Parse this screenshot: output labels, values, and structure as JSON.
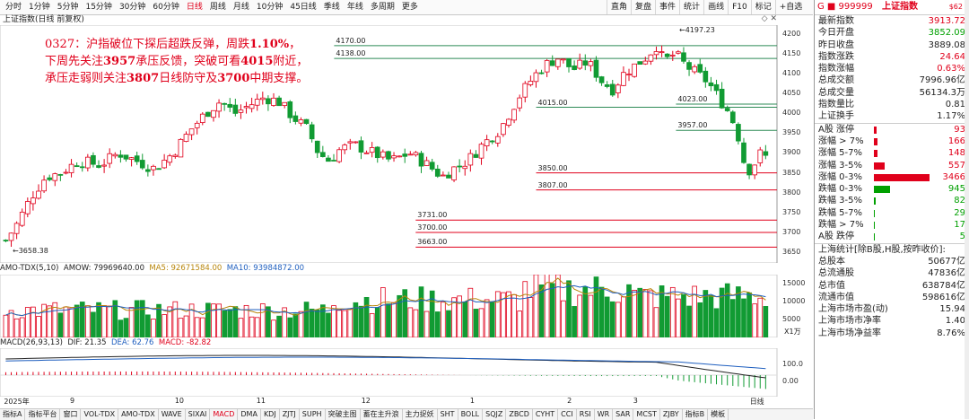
{
  "toolbar": {
    "periods": [
      "分时",
      "1分钟",
      "5分钟",
      "15分钟",
      "30分钟",
      "60分钟",
      "日线",
      "周线",
      "月线",
      "10分钟",
      "45日线",
      "季线",
      "年线",
      "多周期",
      "更多"
    ],
    "active_period": "日线",
    "tools": [
      "直角",
      "复盘",
      "事件",
      "统计",
      "画线",
      "F10",
      "标记",
      "+自选"
    ],
    "title": "上证指数(日线 前复权)",
    "win_icons": "◇ ✕"
  },
  "annotation": {
    "line1_pre": "0327：沪指破位下探后超跌反弹，周跌",
    "line1_bold": "1.10%",
    "line1_post": "，",
    "line2_pre": "下周先关注",
    "line2_b1": "3957",
    "line2_mid": "承压反馈，突破可看",
    "line2_b2": "4015",
    "line2_post": "附近，",
    "line3_pre": "承压走弱则关注",
    "line3_b1": "3807",
    "line3_mid": "日线防守及",
    "line3_b2": "3700",
    "line3_post": "中期支撑。"
  },
  "levels": [
    {
      "label": "4170.00",
      "value": 4170,
      "color": "#2e8b57",
      "x0": 0.43,
      "x1": 1.0
    },
    {
      "label": "4138.00",
      "value": 4138,
      "color": "#2e8b57",
      "x0": 0.43,
      "x1": 1.0
    },
    {
      "label": "4015.00",
      "value": 4015,
      "color": "#2e8b57",
      "x0": 0.69,
      "x1": 1.0
    },
    {
      "label": "4023.00",
      "value": 4023,
      "color": "#2e8b57",
      "x0": 0.87,
      "x1": 1.0
    },
    {
      "label": "3957.00",
      "value": 3957,
      "color": "#2e8b57",
      "x0": 0.87,
      "x1": 1.0
    },
    {
      "label": "3850.00",
      "value": 3850,
      "color": "#e0001b",
      "x0": 0.69,
      "x1": 1.0
    },
    {
      "label": "3807.00",
      "value": 3807,
      "color": "#e0001b",
      "x0": 0.69,
      "x1": 1.0
    },
    {
      "label": "3731.00",
      "value": 3731,
      "color": "#e0001b",
      "x0": 0.535,
      "x1": 1.0
    },
    {
      "label": "3700.00",
      "value": 3700,
      "color": "#e0001b",
      "x0": 0.535,
      "x1": 1.0
    },
    {
      "label": "3663.00",
      "value": 3663,
      "color": "#e0001b",
      "x0": 0.535,
      "x1": 1.0
    }
  ],
  "price_axis": {
    "ticks": [
      "4200",
      "4150",
      "4100",
      "4050",
      "4000",
      "3950",
      "3900",
      "3850",
      "3800",
      "3750",
      "3700",
      "3650"
    ],
    "min": 3630,
    "max": 4215
  },
  "marks": {
    "high": "4197.23",
    "low": "3658.38"
  },
  "amo_header": {
    "name": "AMO-TDX(5,10)",
    "amow": "AMOW: 79969640.00",
    "ma5": "MA5: 92671584.00",
    "ma10": "MA10: 93984872.00",
    "unit": "X1万"
  },
  "amo_axis": [
    "15000",
    "10000",
    "5000"
  ],
  "macd_header": {
    "name": "MACD(26,93,13)",
    "dif": "DIF: 21.35",
    "dea": "DEA: 62.76",
    "macd": "MACD: -82.82"
  },
  "macd_axis": [
    "100.0",
    "0.00"
  ],
  "x_ticks": [
    {
      "label": "2025年",
      "pos": 0.005
    },
    {
      "label": "9",
      "pos": 0.09
    },
    {
      "label": "10",
      "pos": 0.225
    },
    {
      "label": "11",
      "pos": 0.33
    },
    {
      "label": "12",
      "pos": 0.465
    },
    {
      "label": "1",
      "pos": 0.605
    },
    {
      "label": "2",
      "pos": 0.73
    },
    {
      "label": "3",
      "pos": 0.815
    },
    {
      "label": "日线",
      "pos": 0.965
    }
  ],
  "tabs": [
    "指标A",
    "指标平台",
    "窗口",
    "VOL-TDX",
    "AMO-TDX",
    "WAVE",
    "SIXAI",
    "MACD",
    "DMA",
    "KDJ",
    "ZJTJ",
    "SUPH",
    "突破主图",
    "蓄在主升浪",
    "主力捉妖",
    "SHT",
    "BOLL",
    "SQJZ",
    "ZBCD",
    "CYHT",
    "CCI",
    "RSI",
    "WR",
    "SAR",
    "MCST",
    "ZJBY",
    "指标B",
    "模板"
  ],
  "active_tab": "MACD",
  "side": {
    "code": "G ■ 999999",
    "name": "上证指数",
    "tag": "$62",
    "quote": [
      {
        "k": "最新指数",
        "v": "3913.72",
        "c": "red"
      },
      {
        "k": "今日开盘",
        "v": "3852.09",
        "c": "green"
      },
      {
        "k": "昨日收盘",
        "v": "3889.08",
        "c": ""
      },
      {
        "k": "指数涨跌",
        "v": "24.64",
        "c": "red"
      },
      {
        "k": "指数涨幅",
        "v": "0.63%",
        "c": "red"
      },
      {
        "k": "总成交额",
        "v": "7996.96亿",
        "c": ""
      },
      {
        "k": "总成交量",
        "v": "56134.3万",
        "c": ""
      },
      {
        "k": "指数量比",
        "v": "0.81",
        "c": ""
      },
      {
        "k": "上证换手",
        "v": "1.17%",
        "c": ""
      }
    ],
    "breadth": [
      {
        "k": "A股 涨停",
        "v": "93",
        "c": "red",
        "w": 3,
        "bc": "#e0001b"
      },
      {
        "k": "涨幅 > 7%",
        "v": "166",
        "c": "red",
        "w": 4,
        "bc": "#e0001b"
      },
      {
        "k": "涨幅 5-7%",
        "v": "148",
        "c": "red",
        "w": 4,
        "bc": "#e0001b"
      },
      {
        "k": "涨幅 3-5%",
        "v": "557",
        "c": "red",
        "w": 12,
        "bc": "#e0001b"
      },
      {
        "k": "涨幅 0-3%",
        "v": "3466",
        "c": "red",
        "w": 62,
        "bc": "#e0001b"
      },
      {
        "k": "跌幅 0-3%",
        "v": "945",
        "c": "green",
        "w": 18,
        "bc": "#00a000"
      },
      {
        "k": "跌幅 3-5%",
        "v": "82",
        "c": "green",
        "w": 2,
        "bc": "#00a000"
      },
      {
        "k": "跌幅 5-7%",
        "v": "29",
        "c": "green",
        "w": 1,
        "bc": "#00a000"
      },
      {
        "k": "跌幅 > 7%",
        "v": "17",
        "c": "green",
        "w": 1,
        "bc": "#00a000"
      },
      {
        "k": "A股 跌停",
        "v": "5",
        "c": "green",
        "w": 1,
        "bc": "#00a000"
      }
    ],
    "stats_title": "上海统计[除B股,H股,按昨收价]:",
    "stats": [
      {
        "k": "总股本",
        "v": "50677亿"
      },
      {
        "k": "总流通股",
        "v": "47836亿"
      },
      {
        "k": "总市值",
        "v": "638784亿"
      },
      {
        "k": "流通市值",
        "v": "598616亿"
      },
      {
        "k": "上海市场市盈(动)",
        "v": "15.94"
      },
      {
        "k": "上海市场市净率",
        "v": "1.40"
      },
      {
        "k": "上海市场净益率",
        "v": "8.76%"
      }
    ]
  },
  "colors": {
    "up": "#e0001b",
    "down": "#119b33",
    "accent": "#e0001b"
  }
}
